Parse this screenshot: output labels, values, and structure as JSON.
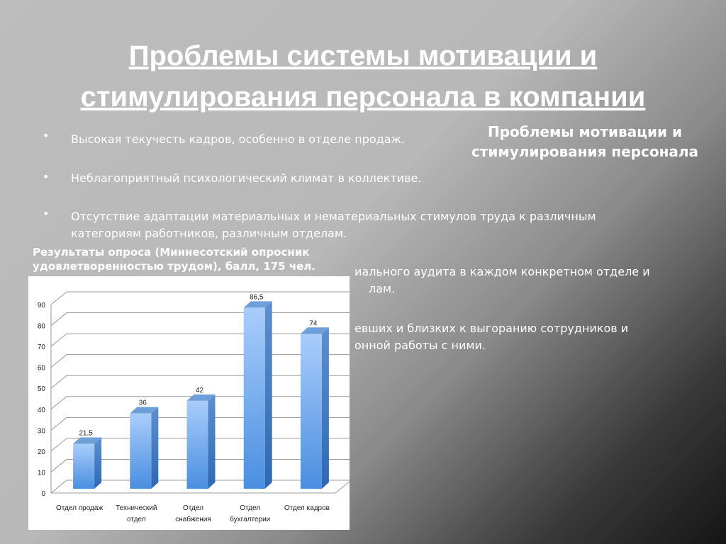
{
  "slide": {
    "title_line1": "Проблемы системы мотивации и",
    "title_line2": "стимулирования персонала в компании",
    "right_heading_line1": "Проблемы мотивации и",
    "right_heading_line2": "стимулирования персонала",
    "chart_caption_line1": "Результаты опроса (Миннесотский опросник",
    "chart_caption_line2": "удовлетворенностью трудом), балл, 175 чел.",
    "bullets": [
      {
        "lines": [
          "Высокая текучесть кадров, особенно в отделе продаж."
        ]
      },
      {
        "lines": [
          "Неблагоприятный психологический климат в коллективе."
        ]
      },
      {
        "lines": [
          "Отсутствие адаптации материальных и нематериальных стимулов труда к различным",
          "категориям работников, различным отделам."
        ]
      },
      {
        "lines": [
          "иального аудита в каждом конкретном отделе и",
          "лам."
        ]
      },
      {
        "lines": [
          "евших и близких к выгоранию сотрудников и",
          "онной работы с ними."
        ]
      }
    ]
  },
  "chart_data": {
    "type": "bar",
    "style": "3d-column",
    "categories": [
      "Отдел продаж",
      "Технический отдел",
      "Отдел снабжения",
      "Отдел бухгалтерии",
      "Отдел кадров"
    ],
    "category_lines": [
      [
        "Отдел продаж"
      ],
      [
        "Технический",
        "отдел"
      ],
      [
        "Отдел",
        "снабжения"
      ],
      [
        "Отдел",
        "бухгалтерии"
      ],
      [
        "Отдел кадров"
      ]
    ],
    "values": [
      21.5,
      36,
      42,
      86.5,
      74
    ],
    "data_labels": [
      "21,5",
      "36",
      "42",
      "86,5",
      "74"
    ],
    "yticks": [
      0,
      10,
      20,
      30,
      40,
      50,
      60,
      70,
      80,
      90
    ],
    "ylim": [
      0,
      90
    ],
    "grid": true,
    "legend": "none",
    "bar_color": "#5b9be6"
  }
}
